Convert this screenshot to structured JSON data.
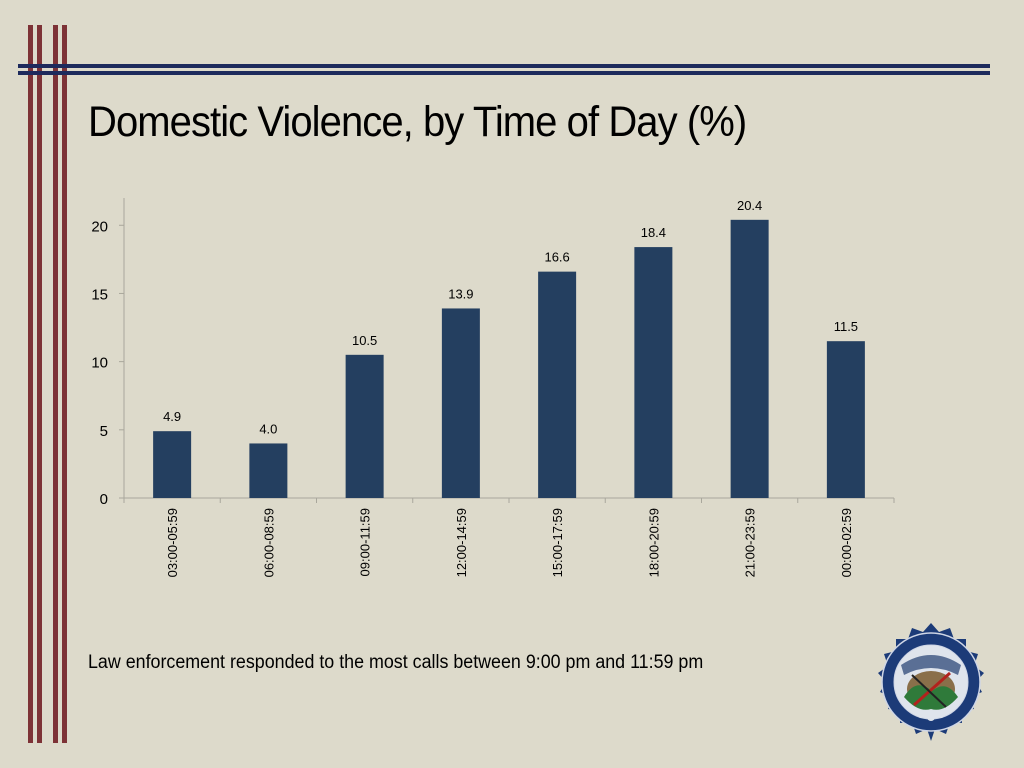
{
  "slide": {
    "title": "Domestic Violence, by Time of Day (%)",
    "caption": "Law enforcement responded to the most calls between 9:00 pm and 11:59 pm"
  },
  "colors": {
    "background": "#dddacb",
    "bar": "#243f60",
    "accent_red": "#7d3236",
    "accent_navy": "#1d2a5c"
  },
  "chart_data": {
    "type": "bar",
    "categories": [
      "03:00-05:59",
      "06:00-08:59",
      "09:00-11:59",
      "12:00-14:59",
      "15:00-17:59",
      "18:00-20:59",
      "21:00-23:59",
      "00:00-02:59"
    ],
    "values": [
      4.9,
      4.0,
      10.5,
      13.9,
      16.6,
      18.4,
      20.4,
      11.5
    ],
    "value_labels": [
      "4.9",
      "4.0",
      "10.5",
      "13.9",
      "16.6",
      "18.4",
      "20.4",
      "11.5"
    ],
    "yticks": [
      0,
      5,
      10,
      15,
      20
    ],
    "ylim": [
      0,
      22
    ],
    "xlabel": "",
    "ylabel": "",
    "grid": false,
    "legend": "none"
  },
  "logo": {
    "icon": "state-bureau-seal-icon",
    "text": "OKLAHOMA STATE BUREAU OF INVESTIGATION 1925"
  }
}
